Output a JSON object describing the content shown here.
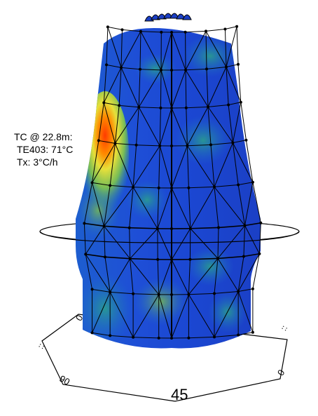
{
  "thermocouple_label": {
    "line1": "TC @ 22.8m:",
    "line2": "TE403: 71°C",
    "line3": "Tx: 3°C/h"
  },
  "base_ring": {
    "tick_left": "0",
    "tick_far_left": "::",
    "tick_bottom_left": "90",
    "tick_front": "45",
    "tick_right": "0",
    "tick_far_right": "::"
  },
  "colors": {
    "cold": "#1f3fc8",
    "cool": "#1d6ac9",
    "mid": "#1d8fa0",
    "warm": "#c9d63a",
    "hot": "#ff5a10",
    "mesh": "#000000"
  },
  "hotspot": {
    "temperature_c": 71,
    "rate_c_per_h": 3
  }
}
